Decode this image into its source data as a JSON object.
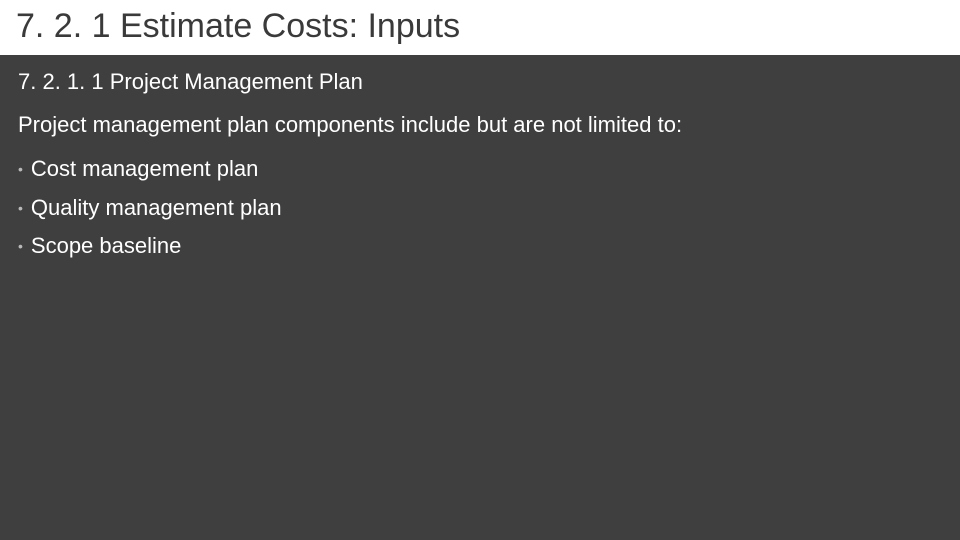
{
  "slide": {
    "background_color": "#3f3f3f",
    "title_bar_background": "#ffffff",
    "title": "7. 2. 1 Estimate Costs: Inputs",
    "title_color": "#3a3a3a",
    "title_fontsize": 34,
    "subheading": "7. 2. 1. 1 Project Management Plan",
    "subheading_fontsize": 22,
    "intro_text": "Project management plan components include but are not limited to:",
    "intro_fontsize": 22,
    "body_text_color": "#ffffff",
    "bullet_marker": "•",
    "bullet_marker_color": "#b9b9b9",
    "bullets": [
      {
        "text": "Cost management plan"
      },
      {
        "text": "Quality management plan"
      },
      {
        "text": "Scope baseline"
      }
    ],
    "bullet_fontsize": 22
  }
}
